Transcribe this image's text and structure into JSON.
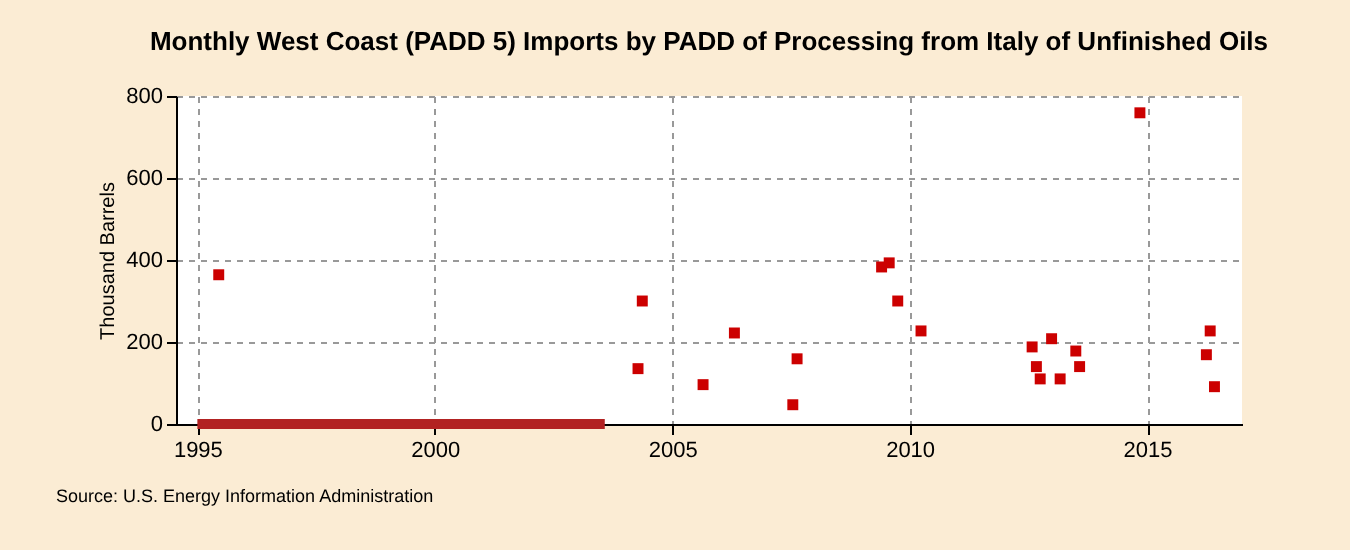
{
  "chart_data": {
    "type": "scatter",
    "title": "Monthly West Coast (PADD 5) Imports by PADD of Processing from Italy of Unfinished Oils",
    "ylabel": "Thousand Barrels",
    "annotations": [
      "Source: U.S. Energy Information Administration"
    ],
    "series": [
      {
        "color": "#cc0000",
        "marker": "square",
        "x": [
          1995.45,
          2004.28,
          2004.37,
          2005.65,
          2006.31,
          2007.54,
          2007.63,
          2009.41,
          2009.57,
          2009.75,
          2010.24,
          2012.58,
          2012.67,
          2012.75,
          2012.99,
          2013.17,
          2013.5,
          2013.58,
          2014.85,
          2016.25,
          2016.33,
          2016.42
        ],
        "values": [
          364,
          135,
          300,
          96,
          222,
          47,
          159,
          383,
          393,
          300,
          227,
          188,
          140,
          110,
          208,
          110,
          178,
          140,
          759,
          169,
          227,
          91
        ]
      },
      {
        "type": "line",
        "color": "#b22222",
        "x": [
          1995.0,
          2003.58
        ],
        "values": [
          0,
          0
        ]
      }
    ],
    "xlim": [
      1994.55,
      2017.0
    ],
    "xticks": [
      1995,
      2000,
      2005,
      2010,
      2015
    ],
    "ylim": [
      0,
      800
    ],
    "yticks": [
      0,
      200,
      400,
      600,
      800
    ],
    "grid": true
  }
}
